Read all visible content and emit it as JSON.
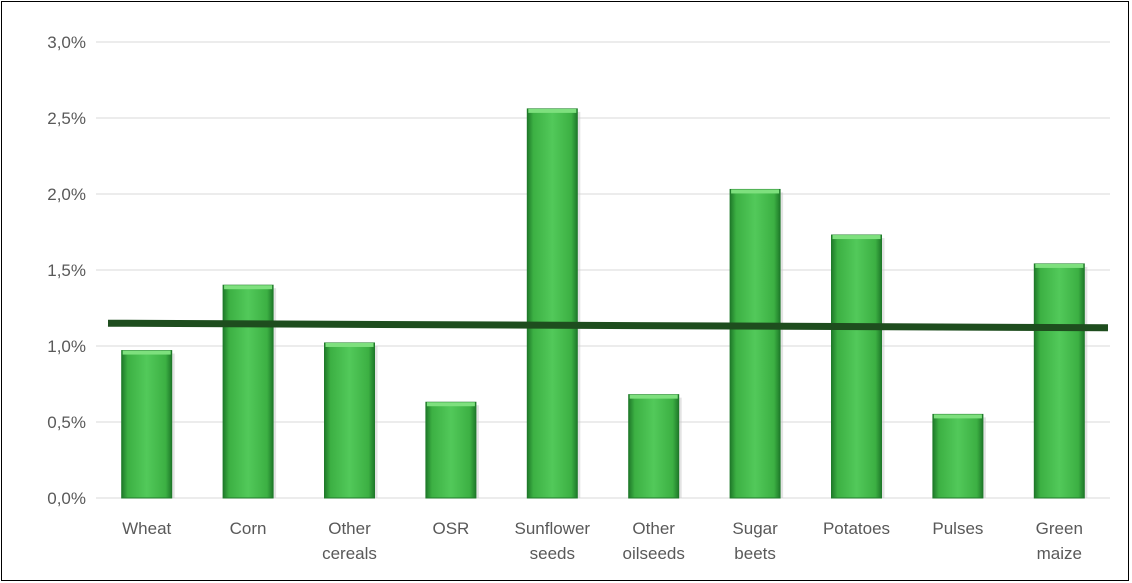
{
  "chart_data": {
    "type": "bar",
    "title": "",
    "xlabel": "",
    "ylabel": "",
    "categories": [
      [
        "Wheat"
      ],
      [
        "Corn"
      ],
      [
        "Other",
        "cereals"
      ],
      [
        "OSR"
      ],
      [
        "Sunflower",
        "seeds"
      ],
      [
        "Other",
        "oilseeds"
      ],
      [
        "Sugar",
        "beets"
      ],
      [
        "Potatoes"
      ],
      [
        "Pulses"
      ],
      [
        "Green",
        "maize"
      ]
    ],
    "values": [
      0.97,
      1.4,
      1.02,
      0.63,
      2.56,
      0.68,
      2.03,
      1.73,
      0.55,
      1.54
    ],
    "ylim": [
      0,
      3
    ],
    "yticks": [
      "0,0%",
      "0,5%",
      "1,0%",
      "1,5%",
      "2,0%",
      "2,5%",
      "3,0%"
    ],
    "trendline": {
      "start": 1.15,
      "end": 1.12,
      "color": "#1e4d1e"
    },
    "grid": true,
    "legend": "none",
    "colors": {
      "bar": "#3cb043",
      "bar_dark": "#1f7a2a",
      "bar_light": "#7ee07e",
      "grid": "#d9d9d9"
    }
  }
}
